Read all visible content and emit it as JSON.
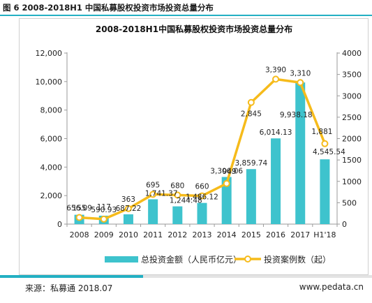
{
  "figure_caption": "图 6 2008-2018H1 中国私募股权投资市场投资总量分布",
  "footer": {
    "source": "来源：私募通 2018.07",
    "website": "www.pedata.cn"
  },
  "colors": {
    "bar": "#3ec3cd",
    "line": "#f6bb1b",
    "accent": "#23b0c3"
  },
  "chart_data": {
    "type": "bar",
    "title": "2008-2018H1中国私募股权投资市场投资总量分布",
    "categories": [
      "2008",
      "2009",
      "2010",
      "2011",
      "2012",
      "2013",
      "2014",
      "2015",
      "2016",
      "2017",
      "H1'18"
    ],
    "series": [
      {
        "name": "总投资金额（人民币亿元）",
        "type": "bar",
        "axis": "left",
        "values": [
          656.09,
          590.93,
          687.22,
          1741.37,
          1244.48,
          1486.12,
          3306.06,
          3859.74,
          6014.13,
          9938.18,
          4545.54
        ],
        "labels": [
          "656.09",
          "590.93",
          "687.22",
          "1,741.37",
          "1,244.48",
          "1,486.12",
          "3,306.06",
          "3,859.74",
          "6,014.13",
          "9,938.18",
          "4,545.54"
        ]
      },
      {
        "name": "投资案例数（起）",
        "type": "line",
        "axis": "right",
        "values": [
          155,
          117,
          363,
          695,
          680,
          660,
          949,
          2845,
          3390,
          3310,
          1881
        ],
        "labels": [
          "155",
          "117",
          "363",
          "695",
          "680",
          "660",
          "949",
          "2,845",
          "3,390",
          "3,310",
          "1,881"
        ]
      }
    ],
    "y_left": {
      "min": 0,
      "max": 12000,
      "ticks": [
        0,
        2000,
        4000,
        6000,
        8000,
        10000,
        12000
      ],
      "tick_labels": [
        "0",
        "2,000",
        "4,000",
        "6,000",
        "8,000",
        "10,000",
        "12,000"
      ]
    },
    "y_right": {
      "min": 0,
      "max": 4000,
      "ticks": [
        0,
        500,
        1000,
        1500,
        2000,
        2500,
        3000,
        3500,
        4000
      ],
      "tick_labels": [
        "0",
        "500",
        "1000",
        "1500",
        "2000",
        "2500",
        "3000",
        "3500",
        "4000"
      ]
    },
    "grid": false,
    "legend_position": "bottom"
  }
}
